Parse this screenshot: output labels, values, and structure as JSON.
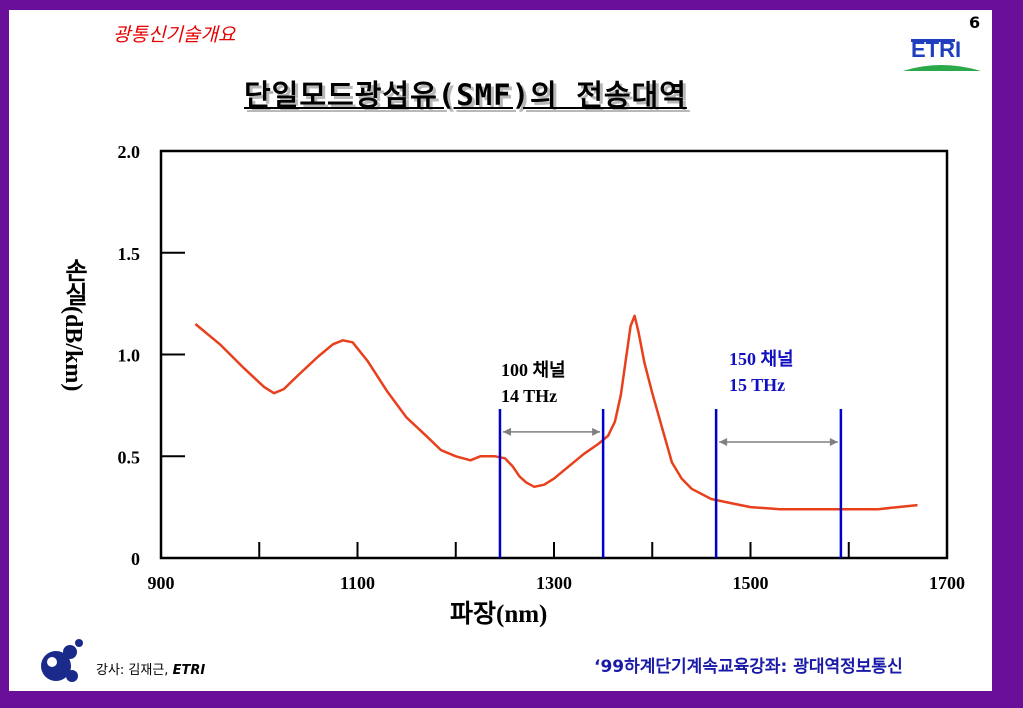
{
  "header": {
    "topic": "광통신기술개요",
    "page_number": "6",
    "logo_text": "ETRI",
    "title": "단일모드광섬유(SMF)의 전송대역"
  },
  "colors": {
    "frame": "#6a0f9a",
    "curve": "#e8401c",
    "band_lines": "#0000cc",
    "arrows": "#808080",
    "topic_text": "#e60000",
    "footer_text": "#1a1aa8"
  },
  "chart_data": {
    "type": "line",
    "ylabel": "손실(dB/km)",
    "xlabel": "파장(nm)",
    "xlim": [
      900,
      1700
    ],
    "ylim": [
      0,
      2.0
    ],
    "x_ticks": [
      "900",
      "1100",
      "1300",
      "1500",
      "1700"
    ],
    "y_ticks": [
      "0",
      "0.5",
      "1.0",
      "1.5",
      "2.0"
    ],
    "x_minor_ticks": [
      1000,
      1100,
      1200,
      1300,
      1400,
      1500,
      1600
    ],
    "y_minor_ticks": [
      0.5,
      1.0,
      1.5
    ],
    "series": [
      {
        "x": [
          935,
          960,
          985,
          1005,
          1015,
          1025,
          1040,
          1060,
          1075,
          1085,
          1095,
          1110,
          1130,
          1150,
          1170,
          1185,
          1200,
          1215,
          1225,
          1240,
          1250,
          1258,
          1265,
          1272,
          1280,
          1290,
          1300,
          1315,
          1330,
          1345,
          1355,
          1362,
          1368,
          1373,
          1378,
          1382,
          1386,
          1392,
          1400,
          1410,
          1420,
          1430,
          1440,
          1460,
          1480,
          1500,
          1530,
          1560,
          1600,
          1630,
          1650,
          1670
        ],
        "y": [
          1.15,
          1.05,
          0.93,
          0.84,
          0.81,
          0.83,
          0.9,
          0.99,
          1.05,
          1.07,
          1.06,
          0.97,
          0.82,
          0.69,
          0.6,
          0.53,
          0.5,
          0.48,
          0.5,
          0.5,
          0.49,
          0.45,
          0.4,
          0.37,
          0.35,
          0.36,
          0.39,
          0.45,
          0.51,
          0.56,
          0.6,
          0.67,
          0.8,
          0.97,
          1.14,
          1.19,
          1.11,
          0.96,
          0.81,
          0.64,
          0.47,
          0.39,
          0.34,
          0.29,
          0.27,
          0.25,
          0.24,
          0.24,
          0.24,
          0.24,
          0.25,
          0.26
        ]
      }
    ],
    "bands": [
      {
        "x_start": 1245,
        "x_end": 1350,
        "label_line1": "100 채널",
        "label_line2": "14  THz",
        "arrow_y": 0.62
      },
      {
        "x_start": 1465,
        "x_end": 1592,
        "label_line1": "150 채널",
        "label_line2": "15  THz",
        "arrow_y": 0.57
      }
    ]
  },
  "footer": {
    "lecturer_label": "강사: 김재근,",
    "lecturer_org": "ETRI",
    "course": "‘99하계단기계속교육강좌: 광대역정보통신"
  }
}
